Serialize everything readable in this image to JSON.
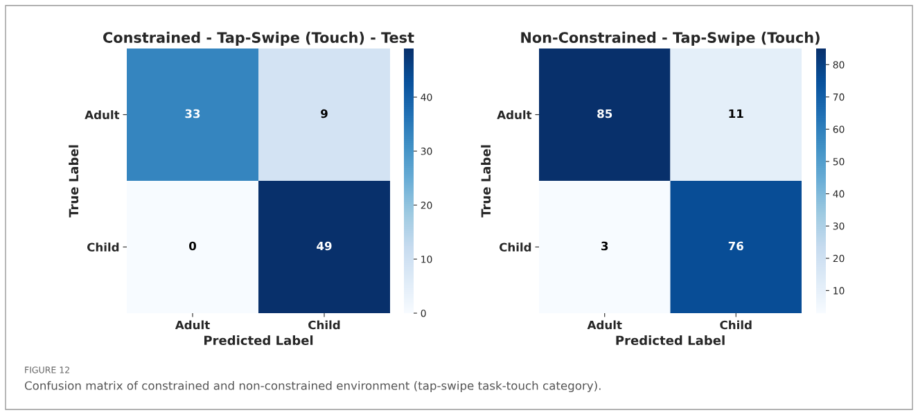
{
  "chart_data": [
    {
      "type": "heatmap",
      "title": "Constrained - Tap-Swipe (Touch) - Test",
      "xlabel": "Predicted Label",
      "ylabel": "True Label",
      "categories": [
        "Adult",
        "Child"
      ],
      "y_categories": [
        "Adult",
        "Child"
      ],
      "cells": [
        [
          33,
          9
        ],
        [
          0,
          49
        ]
      ],
      "clim": [
        0,
        49
      ],
      "cticks": [
        0,
        10,
        20,
        30,
        40
      ],
      "data_labels": true,
      "annotations": [
        "FIGURE 12",
        "Confusion matrix of constrained and non-constrained environment (tap-swipe task-touch category)."
      ]
    },
    {
      "type": "heatmap",
      "title": "Non-Constrained - Tap-Swipe (Touch)",
      "xlabel": "Predicted Label",
      "ylabel": "True Label",
      "categories": [
        "Adult",
        "Child"
      ],
      "y_categories": [
        "Adult",
        "Child"
      ],
      "cells": [
        [
          85,
          11
        ],
        [
          3,
          76
        ]
      ],
      "clim": [
        3,
        85
      ],
      "cticks": [
        10,
        20,
        30,
        40,
        50,
        60,
        70,
        80
      ],
      "data_labels": true
    }
  ]
}
